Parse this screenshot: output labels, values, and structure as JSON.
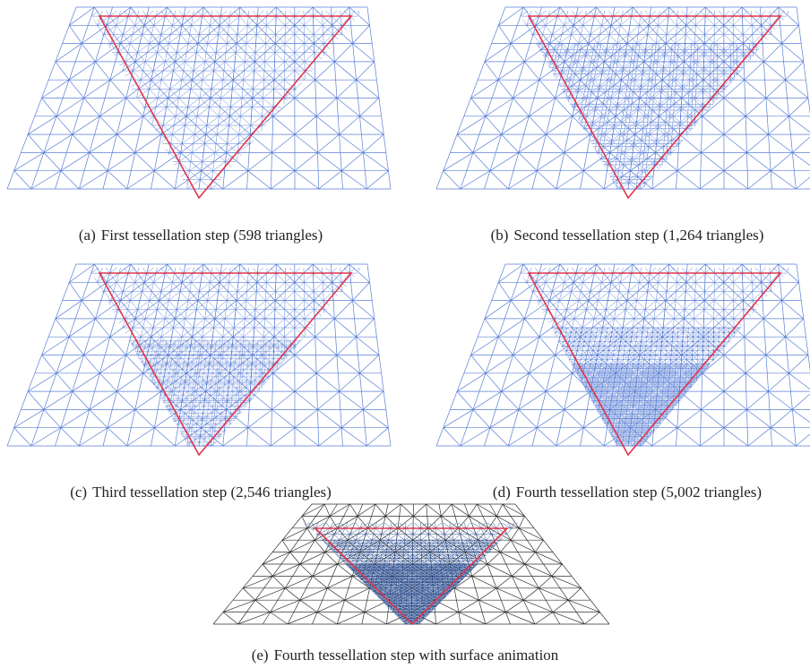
{
  "panels": [
    {
      "label": "(a)",
      "caption": "First tessellation step (598 triangles)"
    },
    {
      "label": "(b)",
      "caption": "Second tessellation step (1,264 triangles)"
    },
    {
      "label": "(c)",
      "caption": "Third tessellation step (2,546 triangles)"
    },
    {
      "label": "(d)",
      "caption": "Fourth tessellation step (5,002 triangles)"
    },
    {
      "label": "(e)",
      "caption": "Fourth tessellation step with surface animation"
    }
  ]
}
